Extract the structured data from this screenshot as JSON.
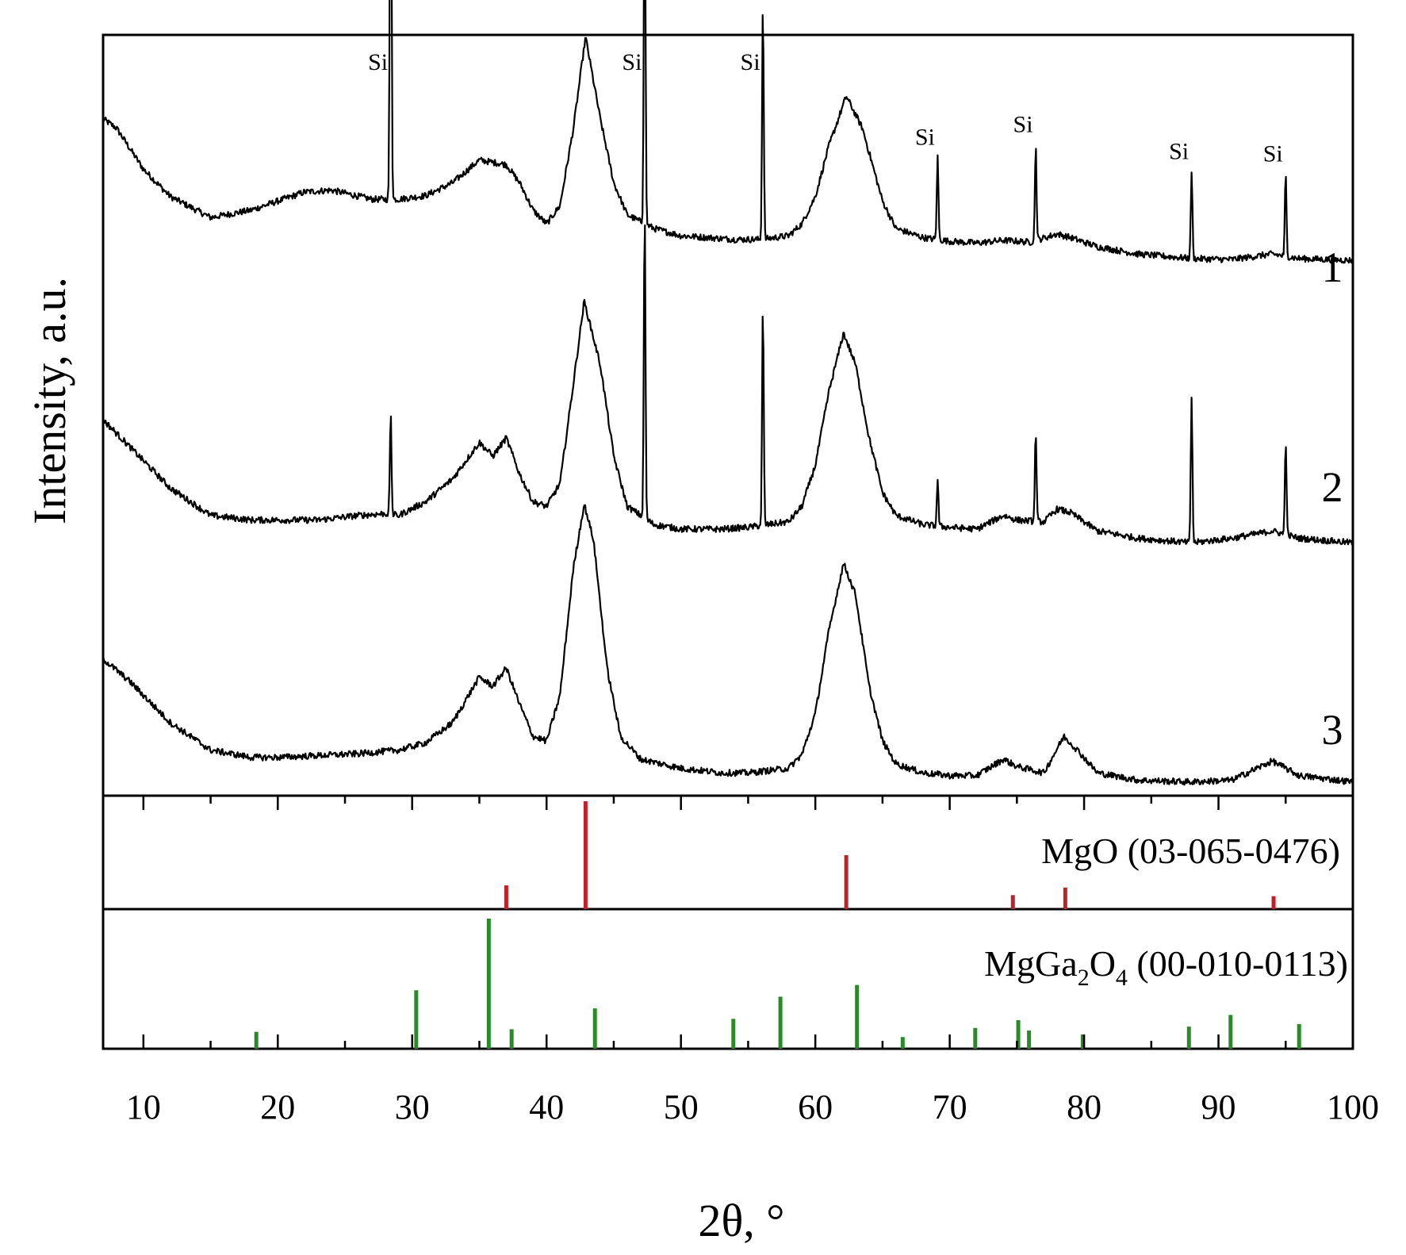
{
  "chart_data": {
    "type": "line",
    "xlabel": "2θ, °",
    "ylabel": "Intensity, a.u.",
    "xlim": [
      7,
      100
    ],
    "x_ticks": [
      10,
      20,
      30,
      40,
      50,
      60,
      70,
      80,
      90,
      100
    ],
    "series": [
      {
        "name": "1",
        "points": [
          [
            7,
            2.0
          ],
          [
            8,
            1.9
          ],
          [
            10,
            1.45
          ],
          [
            12,
            1.15
          ],
          [
            15,
            0.92
          ],
          [
            18,
            1.0
          ],
          [
            20,
            1.1
          ],
          [
            22,
            1.2
          ],
          [
            24,
            1.22
          ],
          [
            27,
            1.12
          ],
          [
            29,
            1.12
          ],
          [
            31,
            1.16
          ],
          [
            33,
            1.3
          ],
          [
            35,
            1.55
          ],
          [
            37,
            1.5
          ],
          [
            38,
            1.3
          ],
          [
            39,
            1.0
          ],
          [
            40,
            0.85
          ],
          [
            41,
            1.05
          ],
          [
            42,
            1.9
          ],
          [
            42.9,
            2.9
          ],
          [
            44,
            2.0
          ],
          [
            45,
            1.3
          ],
          [
            46,
            0.95
          ],
          [
            48,
            0.8
          ],
          [
            50,
            0.72
          ],
          [
            52,
            0.7
          ],
          [
            54,
            0.68
          ],
          [
            56,
            0.68
          ],
          [
            58,
            0.72
          ],
          [
            59,
            0.85
          ],
          [
            60,
            1.15
          ],
          [
            61,
            1.7
          ],
          [
            62.3,
            2.25
          ],
          [
            63.5,
            1.9
          ],
          [
            65,
            1.1
          ],
          [
            66,
            0.8
          ],
          [
            68,
            0.7
          ],
          [
            70,
            0.66
          ],
          [
            72,
            0.64
          ],
          [
            74,
            0.67
          ],
          [
            76,
            0.65
          ],
          [
            78,
            0.74
          ],
          [
            79,
            0.7
          ],
          [
            81,
            0.6
          ],
          [
            84,
            0.52
          ],
          [
            88,
            0.47
          ],
          [
            91,
            0.46
          ],
          [
            94,
            0.52
          ],
          [
            96,
            0.47
          ],
          [
            100,
            0.45
          ]
        ],
        "si_peaks": [
          [
            28.4,
            5.6
          ],
          [
            47.3,
            4.3
          ],
          [
            56.1,
            2.6
          ],
          [
            69.1,
            0.9
          ],
          [
            76.4,
            1.05
          ],
          [
            88.0,
            0.95
          ],
          [
            95.0,
            0.9
          ]
        ]
      },
      {
        "name": "2",
        "points": [
          [
            7,
            1.4
          ],
          [
            9,
            1.1
          ],
          [
            12,
            0.65
          ],
          [
            15,
            0.35
          ],
          [
            18,
            0.3
          ],
          [
            20,
            0.3
          ],
          [
            23,
            0.3
          ],
          [
            26,
            0.35
          ],
          [
            28,
            0.37
          ],
          [
            29,
            0.35
          ],
          [
            31,
            0.5
          ],
          [
            33,
            0.75
          ],
          [
            35,
            1.15
          ],
          [
            36,
            1.0
          ],
          [
            37,
            1.2
          ],
          [
            38,
            0.8
          ],
          [
            39,
            0.5
          ],
          [
            40,
            0.45
          ],
          [
            41,
            0.7
          ],
          [
            42,
            1.8
          ],
          [
            42.8,
            2.7
          ],
          [
            44,
            2.0
          ],
          [
            45,
            1.0
          ],
          [
            46,
            0.45
          ],
          [
            48,
            0.25
          ],
          [
            50,
            0.2
          ],
          [
            53,
            0.2
          ],
          [
            55,
            0.22
          ],
          [
            58,
            0.28
          ],
          [
            59,
            0.45
          ],
          [
            60,
            0.9
          ],
          [
            61,
            1.7
          ],
          [
            62.1,
            2.35
          ],
          [
            63,
            2.0
          ],
          [
            64,
            1.2
          ],
          [
            65,
            0.6
          ],
          [
            66,
            0.35
          ],
          [
            68,
            0.25
          ],
          [
            70,
            0.22
          ],
          [
            72,
            0.2
          ],
          [
            74,
            0.35
          ],
          [
            75,
            0.3
          ],
          [
            77,
            0.28
          ],
          [
            78,
            0.42
          ],
          [
            79,
            0.38
          ],
          [
            81,
            0.18
          ],
          [
            84,
            0.1
          ],
          [
            88,
            0.05
          ],
          [
            91,
            0.1
          ],
          [
            94,
            0.18
          ],
          [
            96,
            0.1
          ],
          [
            100,
            0.05
          ]
        ],
        "si_peaks": [
          [
            28.4,
            1.1
          ],
          [
            47.3,
            3.4
          ],
          [
            56.1,
            2.4
          ],
          [
            69.1,
            0.5
          ],
          [
            76.4,
            1.0
          ],
          [
            88.0,
            1.6
          ],
          [
            95.0,
            1.05
          ]
        ]
      },
      {
        "name": "3",
        "points": [
          [
            7,
            1.3
          ],
          [
            9,
            1.05
          ],
          [
            12,
            0.6
          ],
          [
            15,
            0.3
          ],
          [
            18,
            0.22
          ],
          [
            20,
            0.22
          ],
          [
            23,
            0.24
          ],
          [
            26,
            0.26
          ],
          [
            29,
            0.3
          ],
          [
            31,
            0.38
          ],
          [
            33,
            0.6
          ],
          [
            35,
            1.1
          ],
          [
            36,
            1.0
          ],
          [
            37,
            1.2
          ],
          [
            38,
            0.8
          ],
          [
            39,
            0.45
          ],
          [
            40,
            0.4
          ],
          [
            41,
            0.9
          ],
          [
            42,
            2.3
          ],
          [
            42.8,
            3.0
          ],
          [
            43.5,
            2.6
          ],
          [
            44.5,
            1.2
          ],
          [
            45.5,
            0.45
          ],
          [
            47,
            0.2
          ],
          [
            50,
            0.1
          ],
          [
            53,
            0.05
          ],
          [
            55,
            0.05
          ],
          [
            58,
            0.1
          ],
          [
            59,
            0.25
          ],
          [
            60,
            0.7
          ],
          [
            61,
            1.6
          ],
          [
            62.1,
            2.35
          ],
          [
            63,
            2.0
          ],
          [
            64,
            1.0
          ],
          [
            65,
            0.4
          ],
          [
            66,
            0.15
          ],
          [
            68,
            0.05
          ],
          [
            70,
            0.02
          ],
          [
            72,
            0.02
          ],
          [
            74,
            0.2
          ],
          [
            75,
            0.12
          ],
          [
            77,
            0.05
          ],
          [
            78.5,
            0.45
          ],
          [
            79.5,
            0.3
          ],
          [
            81,
            0.05
          ],
          [
            84,
            -0.03
          ],
          [
            88,
            -0.05
          ],
          [
            91,
            -0.03
          ],
          [
            94,
            0.18
          ],
          [
            96,
            0.02
          ],
          [
            100,
            -0.05
          ]
        ]
      }
    ],
    "si_label": "Si",
    "si_label_positions": [
      28.4,
      47.3,
      56.1,
      69.1,
      76.4,
      88.0,
      95.0
    ],
    "reference_patterns": [
      {
        "name": "MgO (03-065-0476)",
        "color": "#c0202a",
        "lines": [
          [
            37.0,
            0.22
          ],
          [
            42.9,
            1.0
          ],
          [
            62.3,
            0.5
          ],
          [
            74.7,
            0.13
          ],
          [
            78.6,
            0.2
          ],
          [
            94.1,
            0.12
          ]
        ]
      },
      {
        "name_main": "MgGa",
        "name_sub1": "2",
        "name_mid": "O",
        "name_sub2": "4",
        "name_tail": " (00-010-0113)",
        "color": "#2a8a2a",
        "lines": [
          [
            18.4,
            0.13
          ],
          [
            30.3,
            0.45
          ],
          [
            35.7,
            1.0
          ],
          [
            37.4,
            0.15
          ],
          [
            43.6,
            0.31
          ],
          [
            53.9,
            0.23
          ],
          [
            57.4,
            0.4
          ],
          [
            63.1,
            0.49
          ],
          [
            66.5,
            0.09
          ],
          [
            71.9,
            0.16
          ],
          [
            75.1,
            0.22
          ],
          [
            75.9,
            0.14
          ],
          [
            79.9,
            0.11
          ],
          [
            87.8,
            0.17
          ],
          [
            90.9,
            0.26
          ],
          [
            96.0,
            0.19
          ]
        ]
      }
    ]
  }
}
